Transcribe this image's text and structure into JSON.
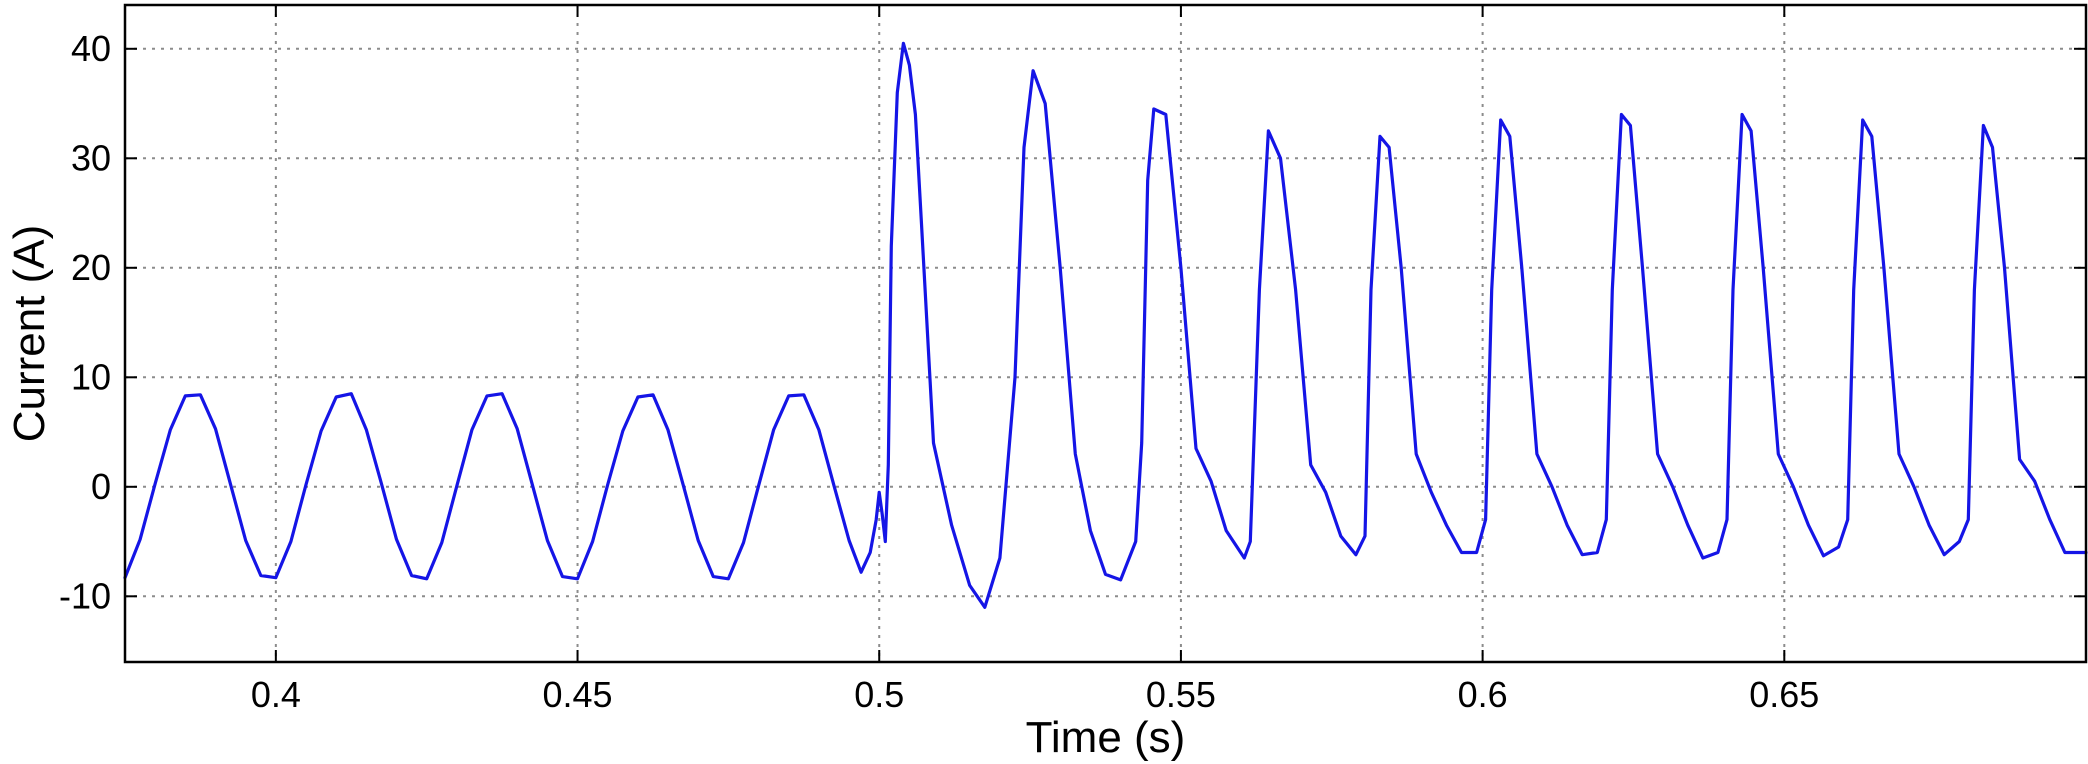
{
  "chart_data": {
    "type": "line",
    "xlabel": "Time (s)",
    "ylabel": "Current (A)",
    "xlim": [
      0.375,
      0.7
    ],
    "ylim": [
      -16,
      44
    ],
    "x_ticks": [
      0.4,
      0.45,
      0.5,
      0.55,
      0.6,
      0.65
    ],
    "x_tick_labels": [
      "0.4",
      "0.45",
      "0.5",
      "0.55",
      "0.6",
      "0.65"
    ],
    "y_ticks": [
      -10,
      0,
      10,
      20,
      30,
      40
    ],
    "y_tick_labels": [
      "-10",
      "0",
      "10",
      "20",
      "30",
      "40"
    ],
    "grid": true,
    "line_color": "#1515e6",
    "series": [
      {
        "x": [
          0.375,
          0.3775,
          0.38,
          0.3825,
          0.385,
          0.3875,
          0.39,
          0.3925,
          0.395,
          0.3975,
          0.4,
          0.4025,
          0.405,
          0.4075,
          0.41,
          0.4125,
          0.415,
          0.4175,
          0.42,
          0.4225,
          0.425,
          0.4275,
          0.43,
          0.4325,
          0.435,
          0.4375,
          0.44,
          0.4425,
          0.445,
          0.4475,
          0.45,
          0.4525,
          0.455,
          0.4575,
          0.46,
          0.4625,
          0.465,
          0.4675,
          0.47,
          0.4725,
          0.475,
          0.4775,
          0.48,
          0.4825,
          0.485,
          0.4875,
          0.49,
          0.4925,
          0.495,
          0.497,
          0.4985,
          0.4995,
          0.5,
          0.5005,
          0.501,
          0.5015,
          0.502,
          0.503,
          0.504,
          0.505,
          0.506,
          0.507,
          0.509,
          0.512,
          0.515,
          0.5175,
          0.52,
          0.5225,
          0.524,
          0.5255,
          0.5275,
          0.53,
          0.5325,
          0.535,
          0.5375,
          0.54,
          0.5425,
          0.5435,
          0.5445,
          0.5455,
          0.5475,
          0.55,
          0.5525,
          0.555,
          0.5575,
          0.5605,
          0.5615,
          0.563,
          0.5645,
          0.5665,
          0.569,
          0.5715,
          0.574,
          0.5765,
          0.579,
          0.5805,
          0.5815,
          0.583,
          0.5845,
          0.5865,
          0.589,
          0.5915,
          0.594,
          0.5965,
          0.599,
          0.6005,
          0.6015,
          0.603,
          0.6045,
          0.6065,
          0.609,
          0.6115,
          0.614,
          0.6165,
          0.619,
          0.6205,
          0.6215,
          0.623,
          0.6245,
          0.6265,
          0.629,
          0.6315,
          0.634,
          0.6365,
          0.639,
          0.6405,
          0.6415,
          0.643,
          0.6445,
          0.6465,
          0.649,
          0.6515,
          0.654,
          0.6565,
          0.659,
          0.6605,
          0.6615,
          0.663,
          0.6645,
          0.6665,
          0.669,
          0.6715,
          0.674,
          0.6765,
          0.679,
          0.6805,
          0.6815,
          0.683,
          0.6845,
          0.6865,
          0.689,
          0.6915,
          0.694,
          0.6965,
          0.7
        ],
        "y": [
          -8.3,
          -4.8,
          0.3,
          5.2,
          8.3,
          8.4,
          5.3,
          0.2,
          -4.9,
          -8.1,
          -8.3,
          -5.0,
          0.2,
          5.1,
          8.2,
          8.5,
          5.2,
          0.3,
          -4.8,
          -8.1,
          -8.4,
          -5.1,
          0.1,
          5.2,
          8.3,
          8.5,
          5.3,
          0.2,
          -4.9,
          -8.2,
          -8.4,
          -5.0,
          0.2,
          5.1,
          8.2,
          8.4,
          5.2,
          0.2,
          -4.9,
          -8.2,
          -8.4,
          -5.1,
          0.1,
          5.2,
          8.3,
          8.4,
          5.2,
          0.1,
          -4.9,
          -7.8,
          -6.0,
          -3.0,
          -0.5,
          -2.5,
          -5.0,
          2.0,
          22.0,
          36.0,
          40.5,
          38.5,
          34.0,
          24.0,
          4.0,
          -3.5,
          -9.0,
          -11.0,
          -6.5,
          10.0,
          31.0,
          38.0,
          35.0,
          20.0,
          3.0,
          -4.0,
          -8.0,
          -8.5,
          -5.0,
          4.0,
          28.0,
          34.5,
          34.0,
          20.0,
          3.5,
          0.5,
          -4.0,
          -6.5,
          -5.0,
          18.0,
          32.5,
          30.0,
          18.0,
          2.0,
          -0.5,
          -4.5,
          -6.2,
          -4.5,
          18.0,
          32.0,
          31.0,
          20.0,
          3.0,
          -0.5,
          -3.5,
          -6.0,
          -6.0,
          -3.0,
          18.0,
          33.5,
          32.0,
          20.0,
          3.0,
          0.0,
          -3.5,
          -6.2,
          -6.0,
          -3.0,
          18.0,
          34.0,
          33.0,
          20.0,
          3.0,
          0.0,
          -3.5,
          -6.5,
          -6.0,
          -3.0,
          18.0,
          34.0,
          32.5,
          20.0,
          3.0,
          0.0,
          -3.5,
          -6.3,
          -5.5,
          -3.0,
          18.0,
          33.5,
          32.0,
          20.0,
          3.0,
          0.0,
          -3.5,
          -6.2,
          -5.0,
          -3.0,
          18.0,
          33.0,
          31.0,
          20.0,
          2.5,
          0.5,
          -3.0,
          -6.0,
          -6.0
        ]
      }
    ]
  }
}
